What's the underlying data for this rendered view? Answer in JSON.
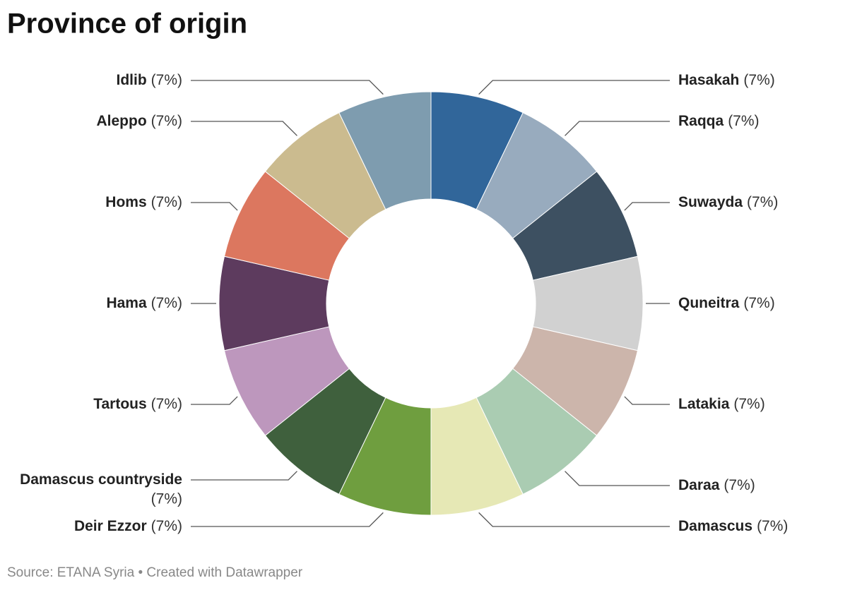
{
  "chart_data": {
    "type": "donut",
    "title": "Province of origin",
    "source": "Source: ETANA Syria • Created with Datawrapper",
    "categories": [
      "Hasakah",
      "Raqqa",
      "Suwayda",
      "Quneitra",
      "Latakia",
      "Daraa",
      "Damascus",
      "Deir Ezzor",
      "Damascus countryside",
      "Tartous",
      "Hama",
      "Homs",
      "Aleppo",
      "Idlib"
    ],
    "values": [
      7,
      7,
      7,
      7,
      7,
      7,
      7,
      7,
      7,
      7,
      7,
      7,
      7,
      7
    ],
    "value_labels": [
      "(7%)",
      "(7%)",
      "(7%)",
      "(7%)",
      "(7%)",
      "(7%)",
      "(7%)",
      "(7%)",
      "(7%)",
      "(7%)",
      "(7%)",
      "(7%)",
      "(7%)",
      "(7%)"
    ],
    "colors": [
      "#31669a",
      "#98abbe",
      "#3d5061",
      "#d1d1d1",
      "#ccb5ab",
      "#aaccb2",
      "#e6e8b5",
      "#6f9e3f",
      "#3f603d",
      "#bd97bd",
      "#5d3b5e",
      "#dc775f",
      "#cbbb8f",
      "#7e9caf"
    ]
  }
}
